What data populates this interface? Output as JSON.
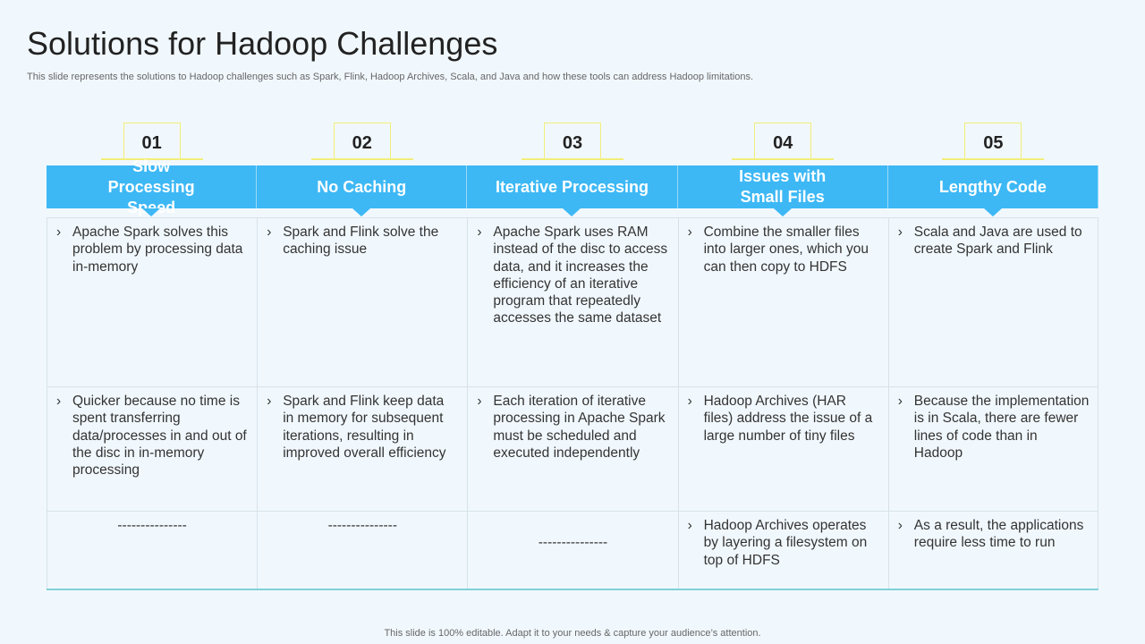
{
  "title": "Solutions for Hadoop Challenges",
  "subtitle": "This slide represents the solutions to Hadoop challenges such as Spark, Flink, Hadoop Archives, Scala, and Java and how these tools can address Hadoop limitations.",
  "footer": "This slide is 100% editable. Adapt it to your needs & capture your audience’s attention.",
  "colors": {
    "header": "#3db8f5",
    "accent": "#f2ee7a"
  },
  "bullet_icon": "chevron-right",
  "columns": [
    {
      "number": "01",
      "heading": "Slow Processing Speed",
      "rows": [
        "Apache Spark solves this problem by processing data in-memory",
        "Quicker because no time is spent transferring data/processes in and out of the disc in in-memory processing",
        "---------------"
      ]
    },
    {
      "number": "02",
      "heading": "No Caching",
      "rows": [
        "Spark and Flink solve the caching issue",
        "Spark and Flink keep data in memory for subsequent iterations, resulting in improved overall efficiency",
        "---------------"
      ]
    },
    {
      "number": "03",
      "heading": "Iterative Processing",
      "rows": [
        "Apache Spark uses RAM instead of the disc to access data, and it increases the efficiency of an iterative program that repeatedly accesses the same dataset",
        "Each iteration of iterative processing in Apache Spark must be scheduled and executed independently",
        "---------------"
      ]
    },
    {
      "number": "04",
      "heading": "Issues with Small Files",
      "rows": [
        "Combine the smaller files into larger ones, which you can then copy to HDFS",
        "Hadoop Archives (HAR files) address the issue of a large number of tiny files",
        "Hadoop Archives operates by layering a filesystem on top of HDFS"
      ]
    },
    {
      "number": "05",
      "heading": "Lengthy Code",
      "rows": [
        "Scala and Java are used to create Spark and Flink",
        "Because the implementation is in Scala, there are fewer lines of code than in Hadoop",
        "As a result, the applications require less time to run"
      ]
    }
  ]
}
